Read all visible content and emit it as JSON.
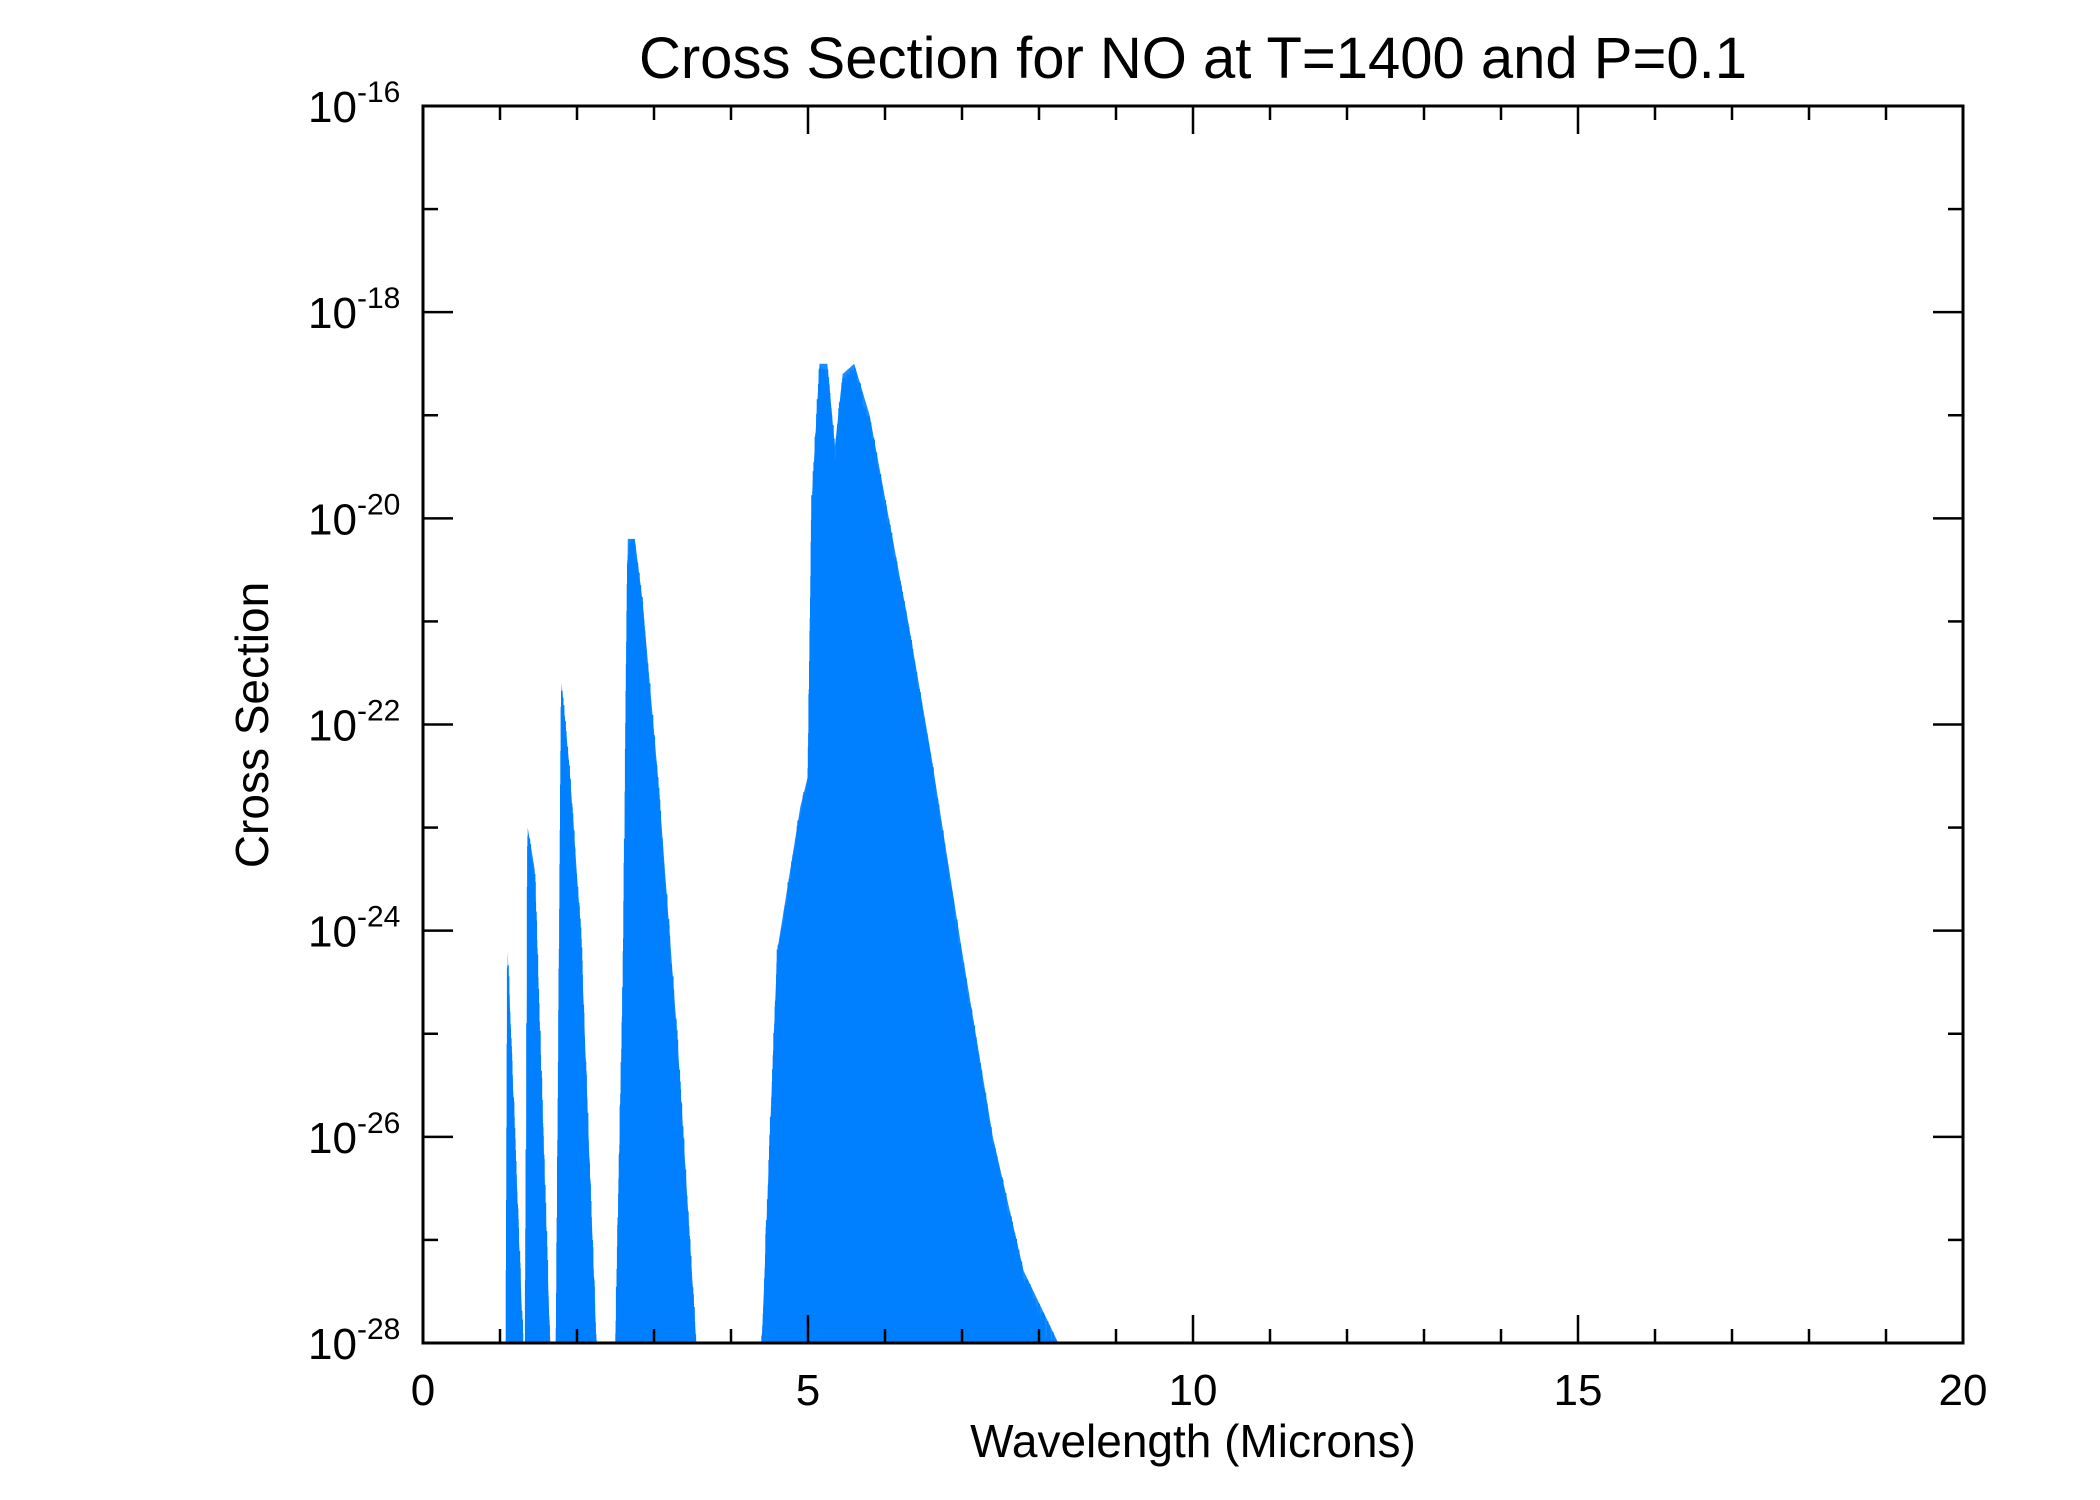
{
  "chart_data": {
    "type": "line",
    "title": "Cross Section for NO at T=1400 and P=0.1",
    "xlabel": "Wavelength (Microns)",
    "ylabel": "Cross Section",
    "xlim": [
      0,
      20
    ],
    "ylim_log10": [
      -28,
      -16
    ],
    "yscale": "log",
    "x_ticks": [
      "0",
      "5",
      "10",
      "15",
      "20"
    ],
    "x_tick_values": [
      0,
      5,
      10,
      15,
      20
    ],
    "y_ticks": [
      {
        "base": "10",
        "exp": "-16",
        "value_log10": -16
      },
      {
        "base": "10",
        "exp": "-18",
        "value_log10": -18
      },
      {
        "base": "10",
        "exp": "-20",
        "value_log10": -20
      },
      {
        "base": "10",
        "exp": "-22",
        "value_log10": -22
      },
      {
        "base": "10",
        "exp": "-24",
        "value_log10": -24
      },
      {
        "base": "10",
        "exp": "-26",
        "value_log10": -26
      },
      {
        "base": "10",
        "exp": "-28",
        "value_log10": -28
      }
    ],
    "series_color": "#0080ff",
    "bands_envelope_log10": [
      {
        "name": "band-1.1",
        "points": [
          [
            1.08,
            -28
          ],
          [
            1.1,
            -24.2
          ],
          [
            1.3,
            -28
          ]
        ]
      },
      {
        "name": "band-1.4",
        "points": [
          [
            1.33,
            -28
          ],
          [
            1.36,
            -23.0
          ],
          [
            1.45,
            -23.4
          ],
          [
            1.65,
            -28
          ]
        ]
      },
      {
        "name": "band-1.8",
        "points": [
          [
            1.73,
            -28
          ],
          [
            1.8,
            -21.6
          ],
          [
            1.9,
            -22.4
          ],
          [
            2.05,
            -24.0
          ],
          [
            2.25,
            -28
          ]
        ]
      },
      {
        "name": "band-2.7",
        "points": [
          [
            2.5,
            -28
          ],
          [
            2.6,
            -24.4
          ],
          [
            2.66,
            -20.2
          ],
          [
            2.75,
            -20.2
          ],
          [
            2.85,
            -20.8
          ],
          [
            3.05,
            -22.5
          ],
          [
            3.3,
            -25.0
          ],
          [
            3.55,
            -28
          ]
        ]
      },
      {
        "name": "band-5.3",
        "points": [
          [
            4.4,
            -28
          ],
          [
            4.6,
            -24.2
          ],
          [
            4.9,
            -22.8
          ],
          [
            5.0,
            -22.5
          ],
          [
            5.05,
            -19.8
          ],
          [
            5.15,
            -18.5
          ],
          [
            5.25,
            -18.5
          ],
          [
            5.35,
            -19.3
          ],
          [
            5.45,
            -18.6
          ],
          [
            5.6,
            -18.5
          ],
          [
            5.8,
            -19.0
          ],
          [
            6.0,
            -19.8
          ],
          [
            6.3,
            -21.0
          ],
          [
            6.6,
            -22.3
          ],
          [
            7.0,
            -24.2
          ],
          [
            7.4,
            -26.0
          ],
          [
            7.8,
            -27.3
          ],
          [
            8.25,
            -28
          ]
        ]
      }
    ]
  }
}
